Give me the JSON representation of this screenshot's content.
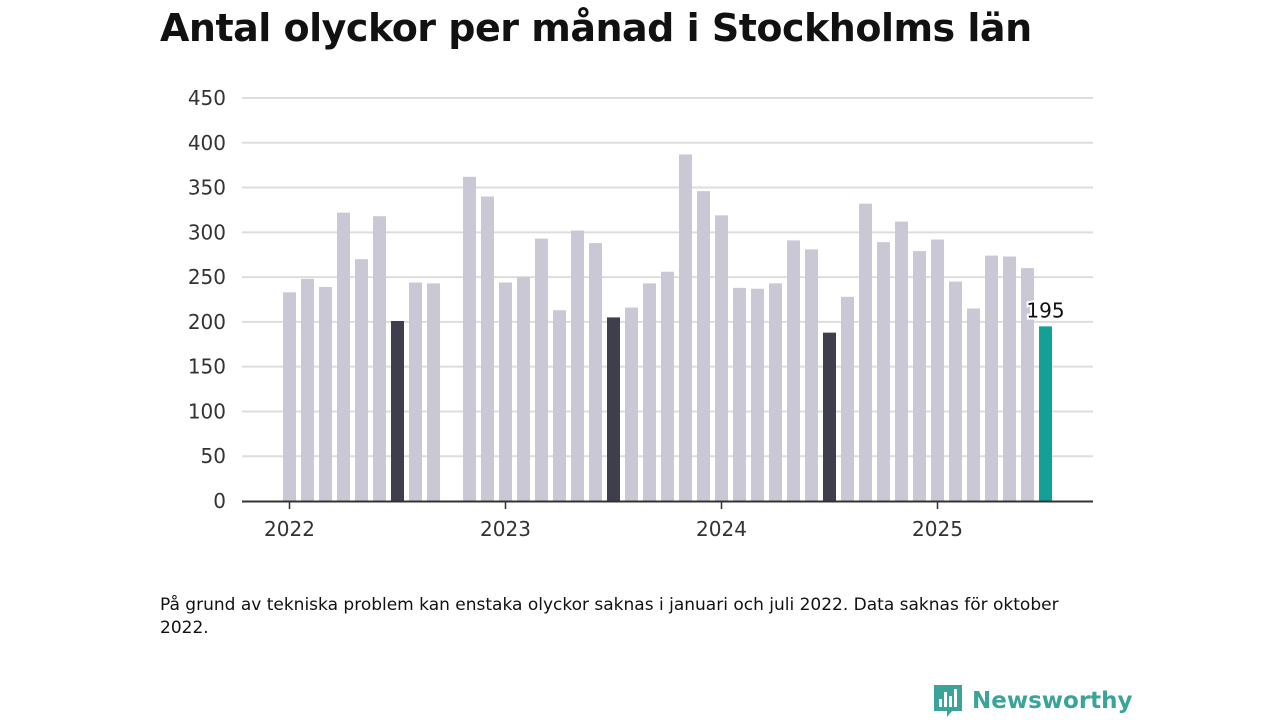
{
  "title": "Antal olyckor per månad i Stockholms län",
  "footnote": "På grund av tekniska problem kan enstaka olyckor saknas i januari och juli 2022. Data saknas för oktober 2022.",
  "brand": {
    "name": "Newsworthy",
    "icon": "newsworthy-logo-icon",
    "color": "#3aa39a"
  },
  "colors": {
    "default_bar": "#c9c8d4",
    "july_bar": "#3f3e4d",
    "latest_bar": "#13a197",
    "grid": "#dddddd",
    "axis": "#333333"
  },
  "chart_data": {
    "type": "bar",
    "title": "Antal olyckor per månad i Stockholms län",
    "xlabel": "",
    "ylabel": "",
    "ylim": [
      0,
      450
    ],
    "yticks": [
      "0",
      "50",
      "100",
      "150",
      "200",
      "250",
      "300",
      "350",
      "400",
      "450"
    ],
    "xticks": [
      "2022",
      "2023",
      "2024",
      "2025"
    ],
    "grid": true,
    "months": [
      "2022-01",
      "2022-02",
      "2022-03",
      "2022-04",
      "2022-05",
      "2022-06",
      "2022-07",
      "2022-08",
      "2022-09",
      "2022-10",
      "2022-11",
      "2022-12",
      "2023-01",
      "2023-02",
      "2023-03",
      "2023-04",
      "2023-05",
      "2023-06",
      "2023-07",
      "2023-08",
      "2023-09",
      "2023-10",
      "2023-11",
      "2023-12",
      "2024-01",
      "2024-02",
      "2024-03",
      "2024-04",
      "2024-05",
      "2024-06",
      "2024-07",
      "2024-08",
      "2024-09",
      "2024-10",
      "2024-11",
      "2024-12",
      "2025-01",
      "2025-02",
      "2025-03",
      "2025-04",
      "2025-05",
      "2025-06",
      "2025-07"
    ],
    "values": [
      233,
      248,
      239,
      322,
      270,
      318,
      201,
      244,
      243,
      null,
      362,
      340,
      244,
      250,
      293,
      213,
      302,
      288,
      205,
      216,
      243,
      256,
      387,
      346,
      319,
      238,
      237,
      243,
      291,
      281,
      188,
      228,
      332,
      289,
      312,
      279,
      292,
      245,
      215,
      274,
      273,
      260,
      195
    ],
    "highlight": {
      "july": "dark",
      "last": "teal"
    },
    "data_labels": [
      {
        "month": "2025-07",
        "text": "195"
      }
    ]
  }
}
